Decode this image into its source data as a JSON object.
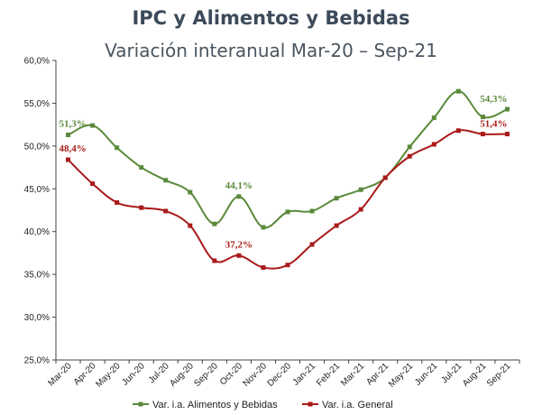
{
  "chart_data": {
    "type": "line",
    "title": "IPC y Alimentos y Bebidas",
    "subtitle": "Variación interanual Mar-20 – Sep-21",
    "categories": [
      "Mar-20",
      "Apr-20",
      "May-20",
      "Jun-20",
      "Jul-20",
      "Aug-20",
      "Sep-20",
      "Oct-20",
      "Nov-20",
      "Dec-20",
      "Jan-21",
      "Feb-21",
      "Mar-21",
      "Apr-21",
      "May-21",
      "Jun-21",
      "Jul-21",
      "Aug-21",
      "Sep-21"
    ],
    "ylim": [
      25,
      60
    ],
    "yticks": [
      "25,0%",
      "30,0%",
      "35,0%",
      "40,0%",
      "45,0%",
      "50,0%",
      "55,0%",
      "60,0%"
    ],
    "series": [
      {
        "name": "Var. i.a. Alimentos y Bebidas",
        "color": "#5a8a3a",
        "values": [
          51.3,
          52.4,
          49.8,
          47.5,
          46.0,
          44.6,
          40.9,
          44.1,
          40.5,
          42.3,
          42.4,
          43.9,
          44.9,
          46.3,
          49.9,
          53.3,
          56.4,
          53.4,
          54.3
        ]
      },
      {
        "name": "Var. i.a. General",
        "color": "#aa1a1a",
        "values": [
          48.4,
          45.6,
          43.4,
          42.8,
          42.4,
          40.7,
          36.6,
          37.2,
          35.8,
          36.1,
          38.5,
          40.7,
          42.6,
          46.3,
          48.8,
          50.2,
          51.8,
          51.4,
          51.4
        ]
      }
    ],
    "annotations": [
      {
        "series": 0,
        "index": 0,
        "text": "51,3%"
      },
      {
        "series": 1,
        "index": 0,
        "text": "48,4%"
      },
      {
        "series": 0,
        "index": 7,
        "text": "44,1%"
      },
      {
        "series": 1,
        "index": 7,
        "text": "37,2%"
      },
      {
        "series": 0,
        "index": 18,
        "text": "54,3%"
      },
      {
        "series": 1,
        "index": 18,
        "text": "51,4%"
      }
    ],
    "legend_position": "bottom"
  }
}
